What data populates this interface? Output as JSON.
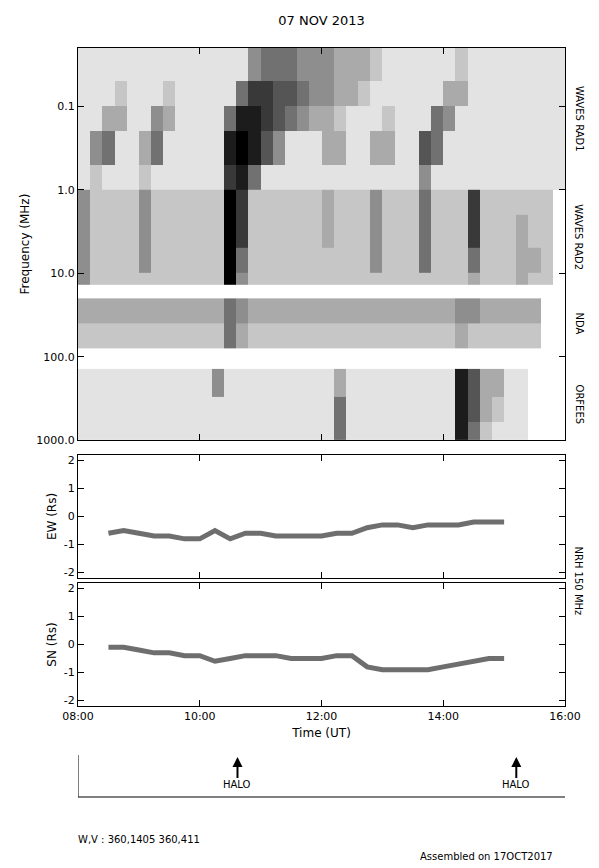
{
  "chart_data": [
    {
      "type": "heatmap",
      "title": "07 NOV 2013",
      "y_label": "Frequency (MHz)",
      "log": "y",
      "xlim": [
        8,
        16
      ],
      "xticks": [
        8,
        10,
        12,
        14,
        16
      ],
      "ylim": [
        1000,
        0.02
      ],
      "yticks": [
        0.1,
        {
          "value": 1,
          "label": "1.0"
        },
        {
          "value": 10,
          "label": "10.0"
        },
        {
          "value": 100,
          "label": "100.0"
        },
        {
          "value": 1000,
          "label": "1000.0"
        }
      ],
      "tick_labels": "y",
      "zlim": [
        0,
        9
      ],
      "x_edges": [
        8,
        8.2,
        8.4,
        8.6,
        8.8,
        9,
        9.2,
        9.4,
        9.6,
        9.8,
        10,
        10.2,
        10.4,
        10.6,
        10.8,
        11,
        11.2,
        11.4,
        11.6,
        11.8,
        12,
        12.2,
        12.4,
        12.6,
        12.8,
        13,
        13.2,
        13.4,
        13.6,
        13.8,
        14,
        14.2,
        14.4,
        14.6,
        14.8,
        15,
        15.2,
        15.4,
        15.6,
        15.8,
        16
      ],
      "bands": [
        {
          "name": "WAVES RAD1",
          "y_edges": [
            0.02,
            0.05,
            0.1,
            0.2,
            0.5,
            1.0
          ],
          "cells": [
            [
              1,
              1,
              1,
              1,
              1,
              1,
              1,
              1,
              1,
              1,
              1,
              1,
              1,
              1,
              4,
              5,
              5,
              5,
              4,
              4,
              4,
              3,
              3,
              3,
              2,
              1,
              1,
              1,
              1,
              1,
              1,
              2,
              1,
              1,
              1,
              1,
              1,
              1,
              1,
              1
            ],
            [
              1,
              1,
              1,
              2,
              1,
              1,
              1,
              2,
              1,
              1,
              1,
              1,
              1,
              5,
              7,
              7,
              6,
              6,
              5,
              4,
              4,
              3,
              3,
              2,
              1,
              1,
              1,
              1,
              1,
              1,
              3,
              3,
              1,
              1,
              1,
              1,
              1,
              1,
              1,
              1
            ],
            [
              1,
              1,
              3,
              3,
              1,
              1,
              4,
              3,
              1,
              1,
              1,
              1,
              5,
              8,
              8,
              7,
              6,
              5,
              4,
              3,
              3,
              2,
              1,
              1,
              1,
              2,
              1,
              1,
              1,
              5,
              4,
              1,
              1,
              1,
              1,
              1,
              1,
              1,
              1,
              1
            ],
            [
              1,
              4,
              5,
              1,
              1,
              3,
              5,
              1,
              1,
              1,
              1,
              1,
              8,
              9,
              8,
              6,
              4,
              1,
              1,
              1,
              3,
              3,
              1,
              1,
              3,
              3,
              1,
              1,
              6,
              5,
              1,
              1,
              1,
              1,
              1,
              1,
              1,
              1,
              1,
              1
            ],
            [
              1,
              2,
              1,
              1,
              1,
              2,
              1,
              1,
              1,
              1,
              1,
              1,
              7,
              8,
              5,
              1,
              1,
              1,
              1,
              1,
              1,
              1,
              1,
              1,
              1,
              1,
              1,
              1,
              4,
              1,
              1,
              1,
              1,
              1,
              1,
              1,
              1,
              1,
              1,
              1
            ]
          ]
        },
        {
          "name": "WAVES RAD2",
          "y_edges": [
            1.0,
            2,
            5,
            10,
            13.8
          ],
          "cells": [
            [
              4,
              2,
              2,
              2,
              2,
              4,
              2,
              2,
              2,
              2,
              2,
              2,
              9,
              7,
              2,
              2,
              2,
              2,
              2,
              2,
              3,
              2,
              2,
              2,
              4,
              2,
              2,
              2,
              5,
              2,
              2,
              2,
              7,
              2,
              2,
              2,
              2,
              2,
              2,
              null
            ],
            [
              4,
              2,
              2,
              2,
              2,
              4,
              2,
              2,
              2,
              2,
              2,
              2,
              9,
              7,
              2,
              2,
              2,
              2,
              2,
              2,
              3,
              2,
              2,
              2,
              4,
              2,
              2,
              2,
              5,
              2,
              2,
              2,
              7,
              2,
              2,
              2,
              3,
              2,
              2,
              null
            ],
            [
              4,
              2,
              2,
              2,
              2,
              4,
              2,
              2,
              2,
              2,
              2,
              2,
              9,
              5,
              2,
              2,
              2,
              2,
              2,
              2,
              2,
              2,
              2,
              2,
              4,
              2,
              2,
              2,
              5,
              2,
              2,
              2,
              5,
              2,
              2,
              2,
              3,
              3,
              2,
              null
            ],
            [
              4,
              2,
              2,
              2,
              2,
              2,
              2,
              2,
              2,
              2,
              2,
              2,
              9,
              4,
              2,
              2,
              2,
              2,
              2,
              2,
              2,
              2,
              2,
              2,
              2,
              2,
              2,
              2,
              2,
              2,
              2,
              2,
              3,
              2,
              2,
              2,
              3,
              2,
              2,
              null
            ]
          ]
        },
        {
          "name": "NDA",
          "y_edges": [
            20,
            40,
            80
          ],
          "cells": [
            [
              3,
              3,
              3,
              3,
              3,
              3,
              3,
              3,
              3,
              3,
              3,
              3,
              5,
              4,
              3,
              3,
              3,
              3,
              3,
              3,
              3,
              3,
              3,
              3,
              3,
              3,
              3,
              3,
              3,
              3,
              3,
              4,
              4,
              3,
              3,
              3,
              3,
              3,
              null,
              null
            ],
            [
              2,
              2,
              2,
              2,
              2,
              2,
              2,
              2,
              2,
              2,
              2,
              2,
              5,
              3,
              2,
              2,
              2,
              2,
              2,
              2,
              2,
              2,
              2,
              2,
              2,
              2,
              2,
              2,
              2,
              2,
              2,
              3,
              2,
              2,
              2,
              2,
              2,
              2,
              null,
              null
            ]
          ]
        },
        {
          "name": "ORFEES",
          "y_edges": [
            140,
            300,
            600,
            1000
          ],
          "cells": [
            [
              1,
              1,
              1,
              1,
              1,
              1,
              1,
              1,
              1,
              1,
              1,
              4,
              1,
              1,
              1,
              1,
              1,
              1,
              1,
              1,
              1,
              3,
              1,
              1,
              1,
              1,
              1,
              1,
              1,
              1,
              1,
              8,
              6,
              3,
              3,
              1,
              1,
              null,
              null,
              null
            ],
            [
              1,
              1,
              1,
              1,
              1,
              1,
              1,
              1,
              1,
              1,
              1,
              1,
              1,
              1,
              1,
              1,
              1,
              1,
              1,
              1,
              1,
              5,
              1,
              1,
              1,
              1,
              1,
              1,
              1,
              1,
              1,
              8,
              6,
              3,
              2,
              1,
              1,
              null,
              null,
              null
            ],
            [
              1,
              1,
              1,
              1,
              1,
              1,
              1,
              1,
              1,
              1,
              1,
              1,
              1,
              1,
              1,
              1,
              1,
              1,
              1,
              1,
              1,
              5,
              1,
              1,
              1,
              1,
              1,
              1,
              1,
              1,
              1,
              8,
              5,
              2,
              1,
              1,
              1,
              null,
              null,
              null
            ]
          ]
        }
      ]
    },
    {
      "type": "line",
      "y_label": "EW (Rs)",
      "xlim": [
        8,
        16
      ],
      "xticks": [
        8,
        10,
        12,
        14,
        16
      ],
      "ylim": [
        -2.2,
        2.2
      ],
      "yticks": [
        -2,
        -1,
        0,
        1,
        2
      ],
      "tick_labels": "y",
      "color": "#6e6e6e",
      "line_style": "solid",
      "x": [
        8.5,
        8.75,
        9.0,
        9.25,
        9.5,
        9.75,
        10.0,
        10.25,
        10.5,
        10.75,
        11.0,
        11.25,
        11.5,
        11.75,
        12.0,
        12.25,
        12.5,
        12.75,
        13.0,
        13.25,
        13.5,
        13.75,
        14.0,
        14.25,
        14.5,
        14.75,
        15.0
      ],
      "values": [
        -0.6,
        -0.5,
        -0.6,
        -0.7,
        -0.7,
        -0.8,
        -0.8,
        -0.5,
        -0.8,
        -0.6,
        -0.6,
        -0.7,
        -0.7,
        -0.7,
        -0.7,
        -0.6,
        -0.6,
        -0.4,
        -0.3,
        -0.3,
        -0.4,
        -0.3,
        -0.3,
        -0.3,
        -0.2,
        -0.2,
        -0.2
      ]
    },
    {
      "type": "line",
      "x_label": "Time (UT)",
      "y_label": "SN (Rs)",
      "xlim": [
        8,
        16
      ],
      "xticks": [
        {
          "value": 8,
          "label": "08:00"
        },
        {
          "value": 10,
          "label": "10:00"
        },
        {
          "value": 12,
          "label": "12:00"
        },
        {
          "value": 14,
          "label": "14:00"
        },
        {
          "value": 16,
          "label": "16:00"
        }
      ],
      "ylim": [
        -2.2,
        2.2
      ],
      "yticks": [
        -2,
        -1,
        0,
        1,
        2
      ],
      "color": "#6e6e6e",
      "line_style": "solid",
      "x": [
        8.5,
        8.75,
        9.0,
        9.25,
        9.5,
        9.75,
        10.0,
        10.25,
        10.5,
        10.75,
        11.0,
        11.25,
        11.5,
        11.75,
        12.0,
        12.25,
        12.5,
        12.75,
        13.0,
        13.25,
        13.5,
        13.75,
        14.0,
        14.25,
        14.5,
        14.75,
        15.0
      ],
      "values": [
        -0.1,
        -0.1,
        -0.2,
        -0.3,
        -0.3,
        -0.4,
        -0.4,
        -0.6,
        -0.5,
        -0.4,
        -0.4,
        -0.4,
        -0.5,
        -0.5,
        -0.5,
        -0.4,
        -0.4,
        -0.8,
        -0.9,
        -0.9,
        -0.9,
        -0.9,
        -0.8,
        -0.7,
        -0.6,
        -0.5,
        -0.5
      ]
    }
  ],
  "side_label": "NRH 150 MHz",
  "events": {
    "label": "HALO",
    "x": [
      10.62,
      15.2
    ]
  },
  "footer": {
    "left": "W,V : 360,1405 360,411",
    "right": "Assembled on 17OCT2017"
  }
}
